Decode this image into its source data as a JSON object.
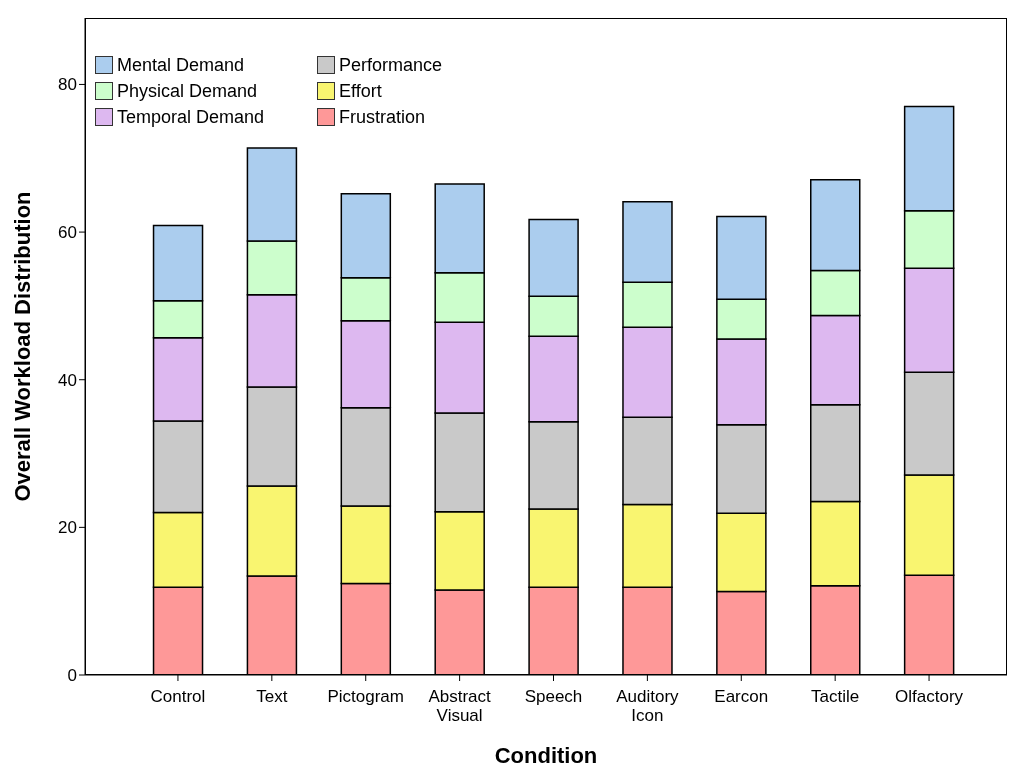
{
  "chart_data": {
    "type": "bar",
    "stacked": true,
    "xlabel": "Condition",
    "ylabel": "Overall Workload Distribution",
    "categories": [
      "Control",
      "Text",
      "Pictogram",
      "Abstract Visual",
      "Speech",
      "Auditory Icon",
      "Earcon",
      "Tactile",
      "Olfactory"
    ],
    "series": [
      {
        "name": "Frustration",
        "color": "#fe9898",
        "values": [
          11.9,
          13.4,
          12.4,
          11.5,
          11.9,
          11.9,
          11.3,
          12.1,
          13.5
        ]
      },
      {
        "name": "Effort",
        "color": "#f9f570",
        "values": [
          10.1,
          12.2,
          10.5,
          10.6,
          10.6,
          11.2,
          10.6,
          11.4,
          13.6
        ]
      },
      {
        "name": "Performance",
        "color": "#c9c9c9",
        "values": [
          12.4,
          13.4,
          13.3,
          13.4,
          11.8,
          11.8,
          12.0,
          13.1,
          13.9
        ]
      },
      {
        "name": "Temporal Demand",
        "color": "#ddb8f0",
        "values": [
          11.3,
          12.5,
          11.8,
          12.3,
          11.6,
          12.2,
          11.6,
          12.1,
          14.1
        ]
      },
      {
        "name": "Physical Demand",
        "color": "#ccfecc",
        "values": [
          5.0,
          7.3,
          5.8,
          6.7,
          5.4,
          6.1,
          5.4,
          6.1,
          7.8
        ]
      },
      {
        "name": "Mental Demand",
        "color": "#abcdee",
        "values": [
          10.2,
          12.6,
          11.4,
          12.0,
          10.4,
          10.9,
          11.2,
          12.3,
          14.1
        ]
      }
    ],
    "ylim": [
      0,
      89
    ],
    "yticks": [
      0,
      20,
      40,
      60,
      80
    ],
    "grid": false,
    "legend": "top left"
  }
}
